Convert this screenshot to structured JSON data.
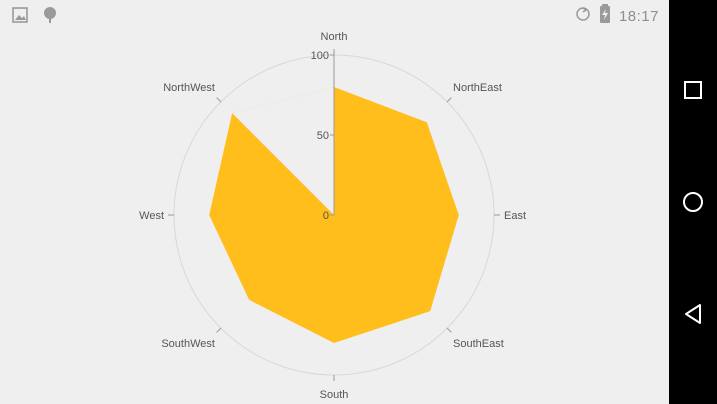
{
  "status_bar": {
    "time": "18:17",
    "icons": [
      "gallery-icon",
      "android-debug-icon",
      "sync-icon",
      "battery-charging-icon"
    ]
  },
  "nav_bar": {
    "buttons": [
      "recents-button",
      "home-button",
      "back-button"
    ]
  },
  "colors": {
    "series_fill": "#ffbe1c",
    "grid": "#d8d8d8",
    "axis_line": "#9a9a9a",
    "label_text": "#555555",
    "background": "#efefef"
  },
  "chart_data": {
    "type": "polar-area",
    "categories": [
      "North",
      "NorthEast",
      "East",
      "SouthEast",
      "South",
      "SouthWest",
      "West",
      "NorthWest"
    ],
    "values": [
      80,
      82,
      78,
      85,
      80,
      75,
      78,
      90
    ],
    "radial_ticks": [
      "0",
      "50",
      "100"
    ],
    "radial_range": [
      0,
      100
    ],
    "title": "",
    "grid": true
  }
}
